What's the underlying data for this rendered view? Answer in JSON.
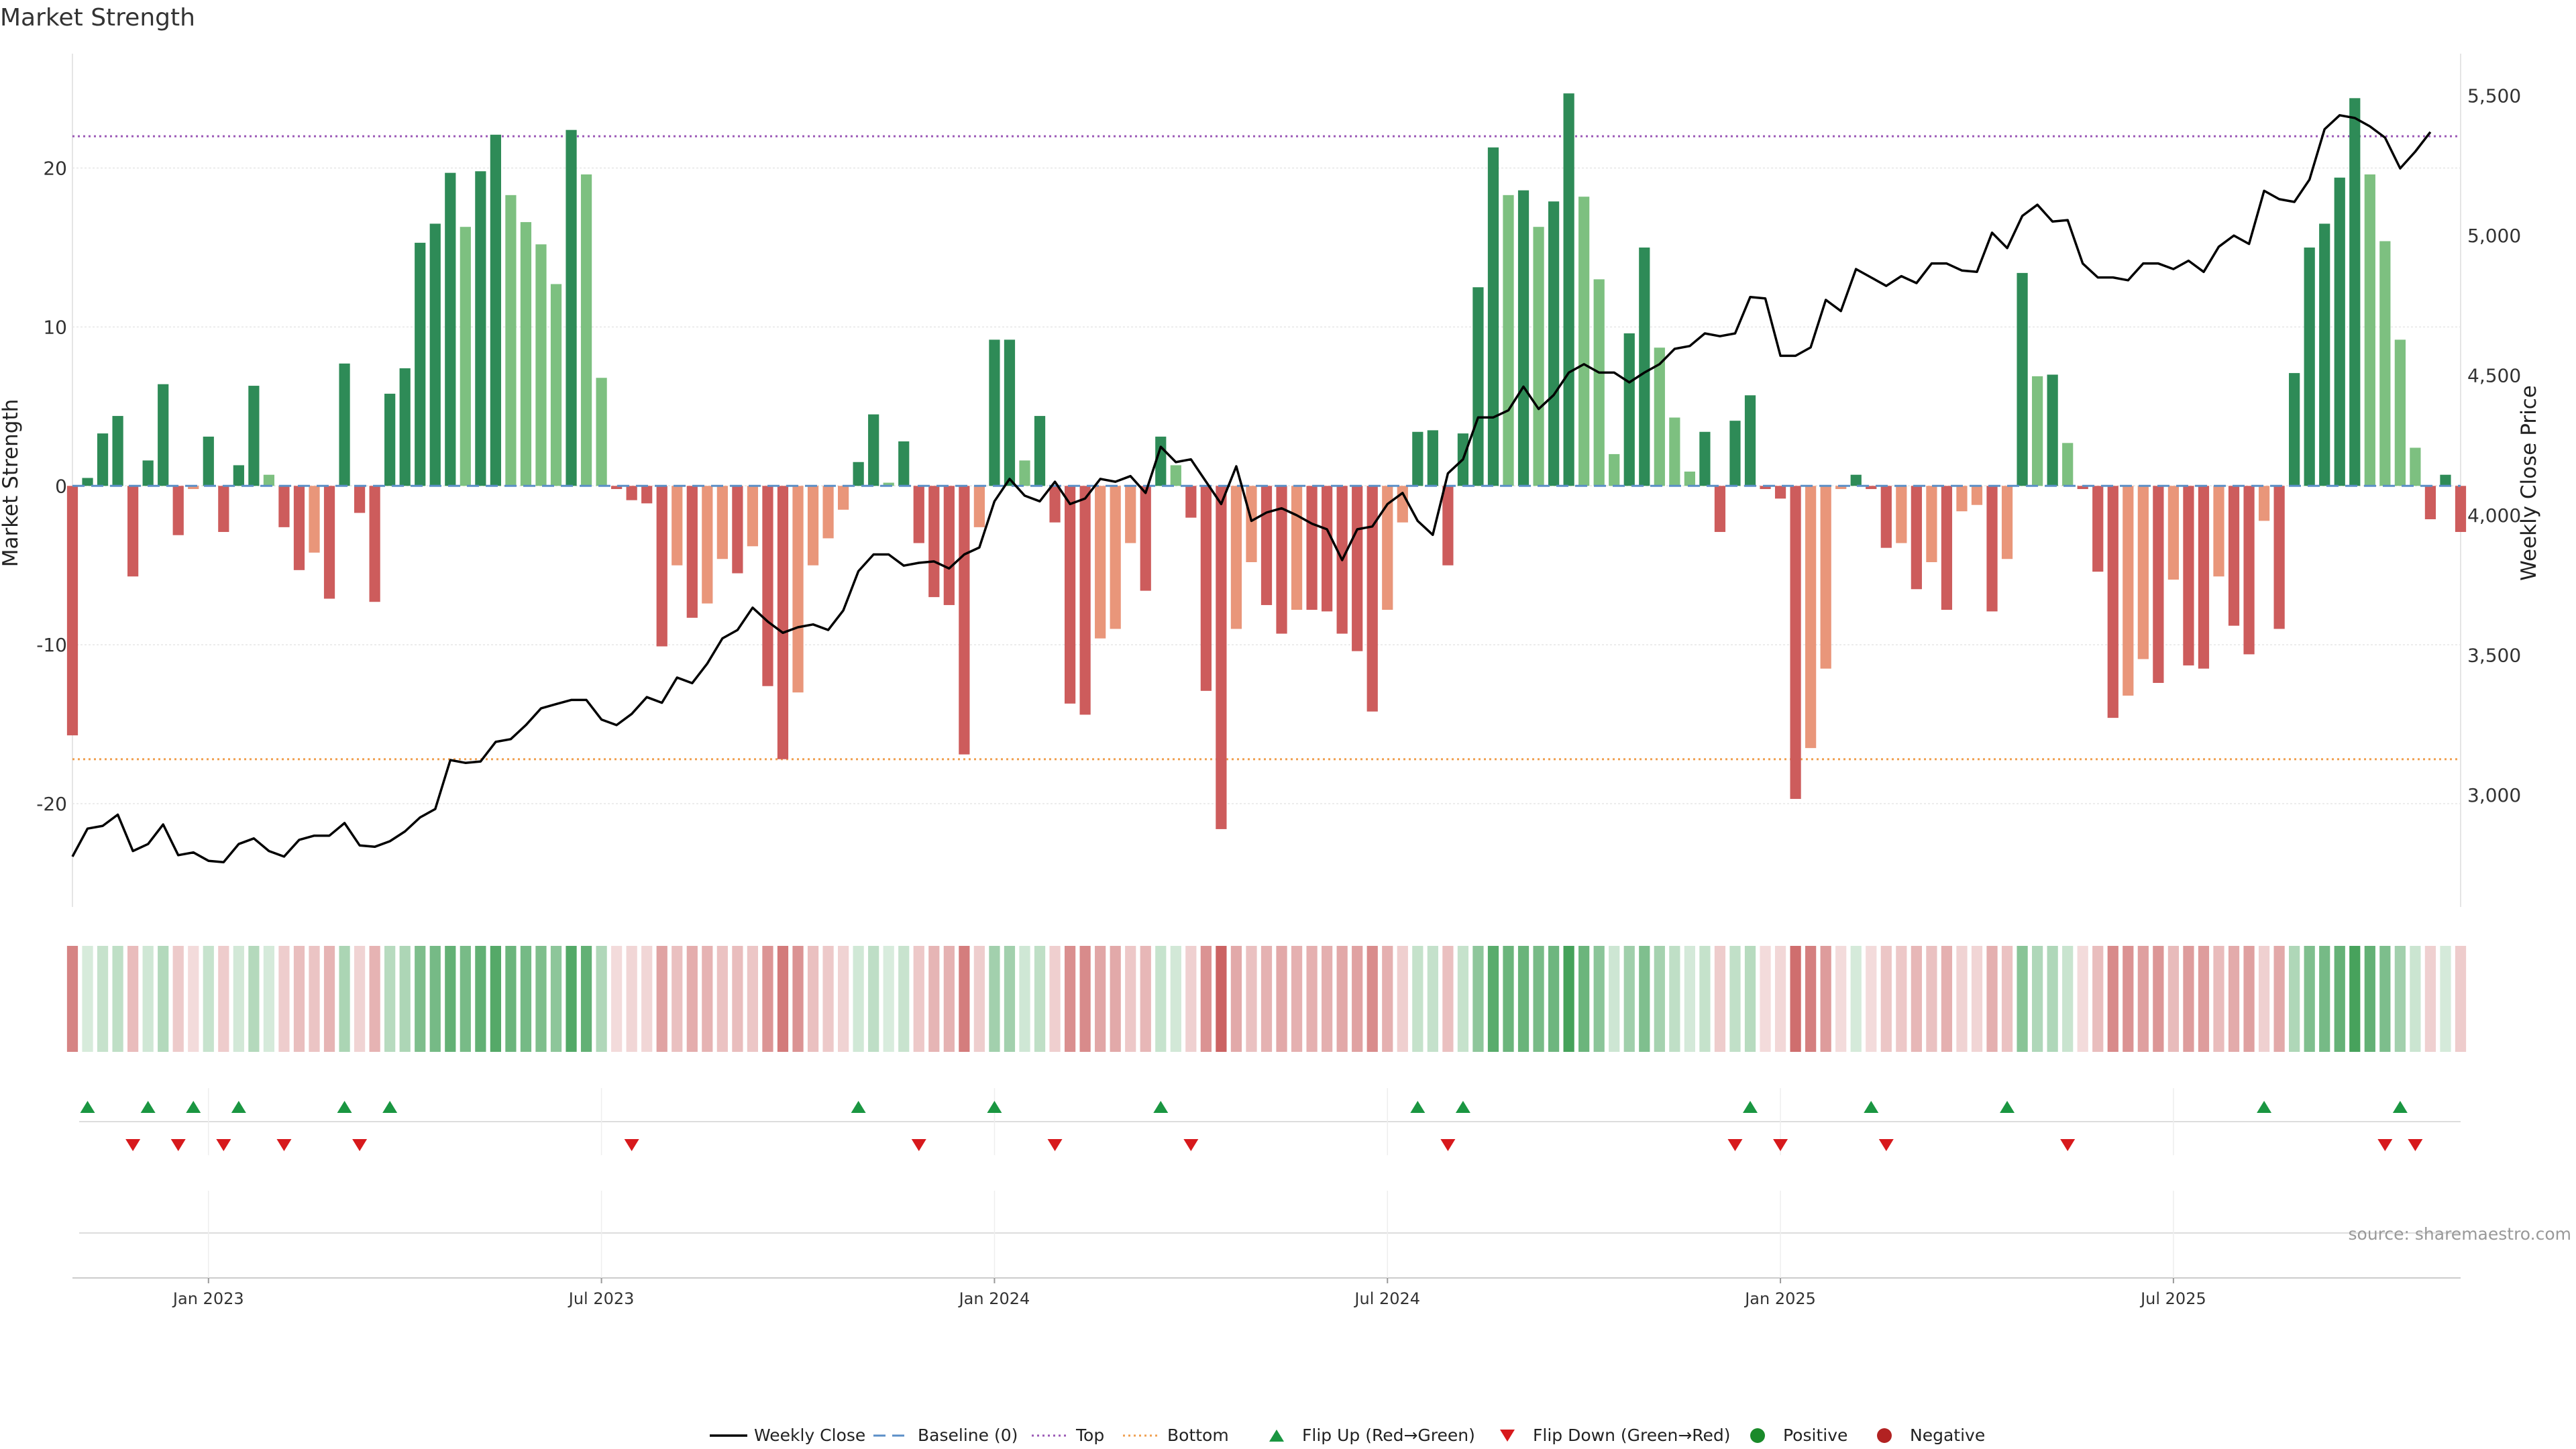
{
  "chart_data": {
    "type": "bar",
    "title": "Market Strength",
    "ylabel_left": "Market Strength",
    "ylabel_right": "Weekly Close Price",
    "ylim_left": [
      -26.5,
      27.2
    ],
    "ylim_right": [
      2600,
      5650
    ],
    "left_ticks": [
      -20,
      -10,
      0,
      10,
      20
    ],
    "right_ticks": [
      3000,
      3500,
      4000,
      4500,
      5000,
      5500
    ],
    "right_tick_labels": [
      "3,000",
      "3,500",
      "4,000",
      "4,500",
      "5,000",
      "5,500"
    ],
    "top_threshold": 22,
    "bottom_threshold": -17.2,
    "x_tick_labels": [
      "Jan 2023",
      "Jul 2023",
      "Jan 2024",
      "Jul 2024",
      "Jan 2025",
      "Jul 2025"
    ],
    "x_tick_weeks": [
      9,
      35,
      61,
      87,
      113,
      139
    ],
    "strength": [
      -15.7,
      0.5,
      3.3,
      4.4,
      -5.7,
      1.6,
      6.4,
      -3.1,
      -0.2,
      3.1,
      -2.9,
      1.3,
      6.3,
      0.7,
      -2.6,
      -5.3,
      -4.2,
      -7.1,
      7.7,
      -1.7,
      -7.3,
      5.8,
      7.4,
      15.3,
      16.5,
      19.7,
      16.3,
      19.8,
      22.1,
      18.3,
      16.6,
      15.2,
      12.7,
      22.4,
      19.6,
      6.8,
      -0.2,
      -0.9,
      -1.1,
      -10.1,
      -5.0,
      -8.3,
      -7.4,
      -4.6,
      -5.5,
      -3.8,
      -12.6,
      -17.2,
      -13.0,
      -5.0,
      -3.3,
      -1.5,
      1.5,
      4.5,
      0.2,
      2.8,
      -3.6,
      -7.0,
      -7.5,
      -16.9,
      -2.6,
      9.2,
      9.2,
      1.6,
      4.4,
      -2.3,
      -13.7,
      -14.4,
      -9.6,
      -9.0,
      -3.6,
      -6.6,
      3.1,
      1.3,
      -2.0,
      -12.9,
      -21.6,
      -9.0,
      -4.8,
      -7.5,
      -9.3,
      -7.8,
      -7.8,
      -7.9,
      -9.3,
      -10.4,
      -14.2,
      -7.8,
      -2.3,
      3.4,
      3.5,
      -5.0,
      3.3,
      12.5,
      21.3,
      18.3,
      18.6,
      16.3,
      17.9,
      24.7,
      18.2,
      13.0,
      2.0,
      9.6,
      15.0,
      8.7,
      4.3,
      0.9,
      3.4,
      -2.9,
      4.1,
      5.7,
      -0.2,
      -0.8,
      -19.7,
      -16.5,
      -11.5,
      -0.2,
      0.7,
      -0.2,
      -3.9,
      -3.6,
      -6.5,
      -4.8,
      -7.8,
      -1.6,
      -1.2,
      -7.9,
      -4.6,
      13.4,
      6.9,
      7.0,
      2.7,
      -0.2,
      -5.4,
      -14.6,
      -13.2,
      -10.9,
      -12.4,
      -5.9,
      -11.3,
      -11.5,
      -5.7,
      -8.8,
      -10.6,
      -2.2,
      -9.0,
      7.1,
      15.0,
      16.5,
      19.4,
      24.4,
      19.6,
      15.4,
      9.2,
      2.4,
      -2.1,
      0.7,
      -2.9
    ],
    "weekly_close": [
      2780,
      2880,
      2890,
      2930,
      2800,
      2825,
      2895,
      2785,
      2795,
      2765,
      2760,
      2825,
      2845,
      2800,
      2780,
      2840,
      2855,
      2855,
      2900,
      2820,
      2815,
      2835,
      2870,
      2920,
      2950,
      3125,
      3115,
      3120,
      3190,
      3200,
      3250,
      3310,
      3325,
      3340,
      3340,
      3270,
      3250,
      3290,
      3350,
      3330,
      3420,
      3400,
      3470,
      3560,
      3590,
      3670,
      3620,
      3580,
      3600,
      3610,
      3590,
      3660,
      3800,
      3860,
      3860,
      3820,
      3830,
      3835,
      3810,
      3860,
      3885,
      4050,
      4130,
      4070,
      4050,
      4120,
      4040,
      4060,
      4130,
      4120,
      4140,
      4080,
      4245,
      4190,
      4200,
      4120,
      4040,
      4175,
      3980,
      4010,
      4025,
      4000,
      3970,
      3950,
      3840,
      3950,
      3960,
      4040,
      4080,
      3980,
      3930,
      4150,
      4200,
      4350,
      4350,
      4375,
      4460,
      4380,
      4430,
      4510,
      4540,
      4510,
      4510,
      4475,
      4510,
      4540,
      4595,
      4605,
      4650,
      4640,
      4650,
      4780,
      4775,
      4570,
      4570,
      4600,
      4770,
      4730,
      4880,
      4850,
      4820,
      4855,
      4830,
      4900,
      4900,
      4875,
      4870,
      5010,
      4955,
      5070,
      5110,
      5050,
      5055,
      4900,
      4850,
      4850,
      4840,
      4900,
      4900,
      4880,
      4910,
      4870,
      4960,
      5000,
      4970,
      5160,
      5130,
      5120,
      5200,
      5380,
      5430,
      5420,
      5390,
      5350,
      5240,
      5300,
      5370
    ],
    "flip_up_weeks": [
      1,
      5,
      8,
      11,
      18,
      21,
      52,
      61,
      72,
      89,
      92,
      111,
      119,
      128,
      145,
      154
    ],
    "flip_down_weeks": [
      4,
      7,
      10,
      14,
      19,
      37,
      56,
      65,
      74,
      91,
      110,
      113,
      120,
      132,
      153,
      155
    ],
    "heat_scale": "strength mapped to red (negative) / green (positive) intensity",
    "colors": {
      "green_strong": "#2e8b57",
      "green_light": "#7dc080",
      "red_strong": "#cd5c5c",
      "red_light": "#e9967a",
      "price_line": "#000000",
      "top_line": "#9b59b6",
      "bottom_line": "#f0a050",
      "baseline": "#5b8fc7",
      "flip_up": "#1a9641",
      "flip_down": "#d7191c"
    }
  },
  "legend": {
    "items": [
      {
        "label": "Weekly Close",
        "kind": "line"
      },
      {
        "label": "Baseline (0)",
        "kind": "dash"
      },
      {
        "label": "Top",
        "kind": "dot-purple"
      },
      {
        "label": "Bottom",
        "kind": "dot-orange"
      },
      {
        "label": "Flip Up (Red→Green)",
        "kind": "tri-up"
      },
      {
        "label": "Flip Down (Green→Red)",
        "kind": "tri-down"
      },
      {
        "label": "Positive",
        "kind": "dot-green"
      },
      {
        "label": "Negative",
        "kind": "dot-red"
      }
    ]
  },
  "source": "source: sharemaestro.com"
}
